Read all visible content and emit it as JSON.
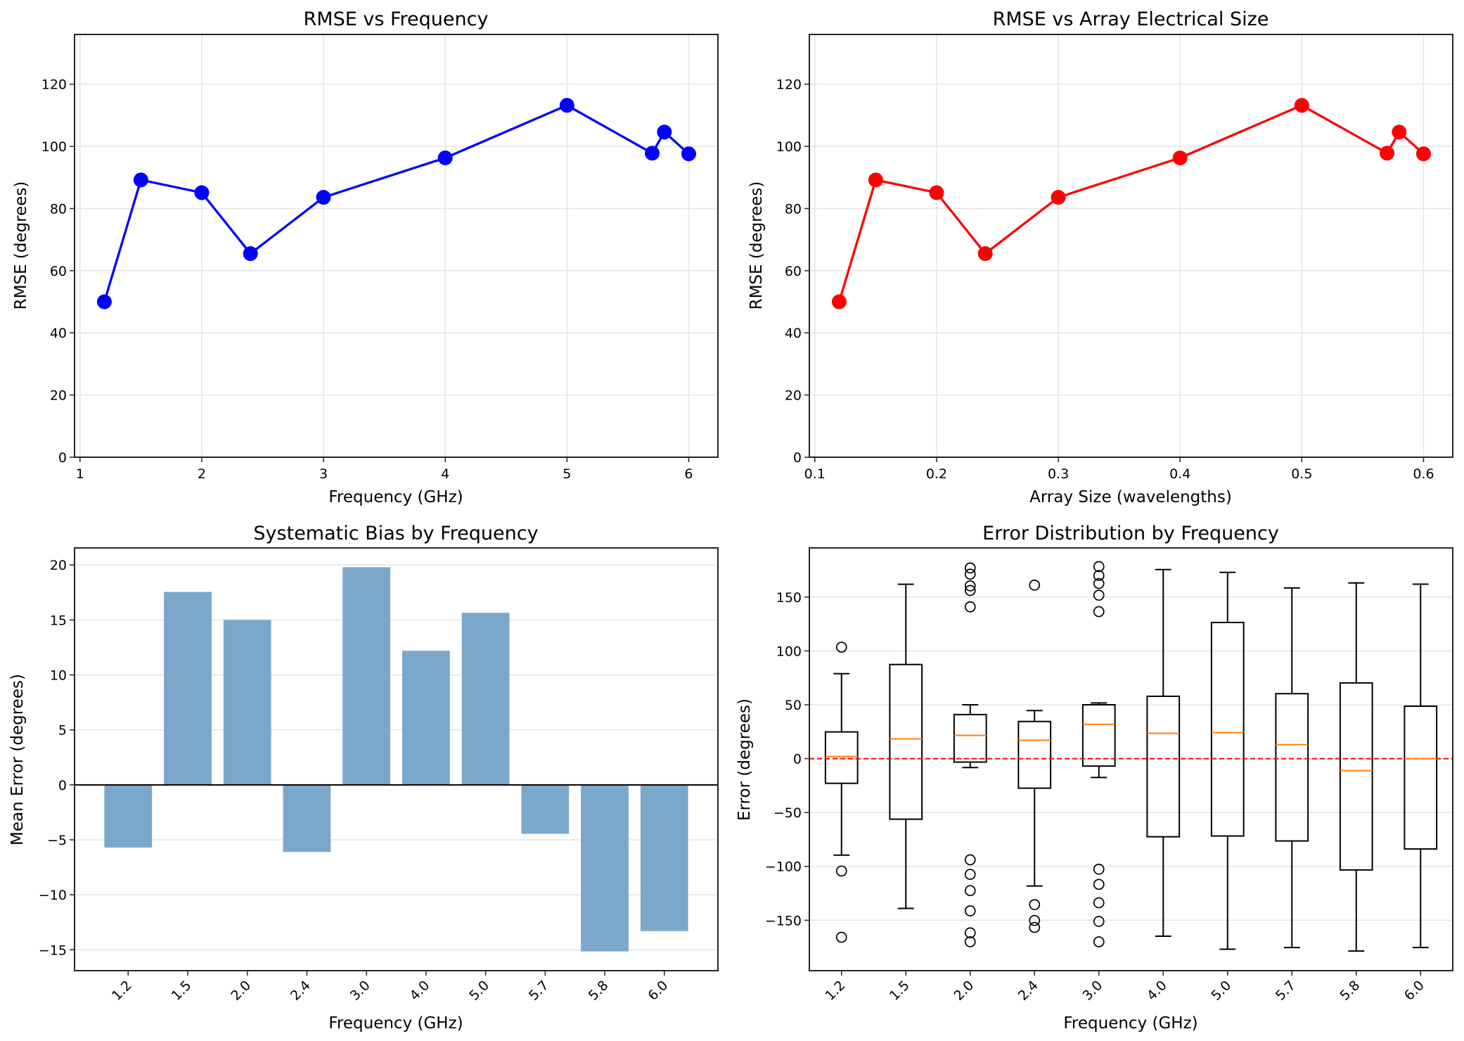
{
  "chart_data": [
    {
      "type": "line",
      "title": "RMSE vs Frequency",
      "xlabel": "Frequency (GHz)",
      "ylabel": "RMSE (degrees)",
      "x": [
        1.2,
        1.5,
        2.0,
        2.4,
        3.0,
        4.0,
        5.0,
        5.7,
        5.8,
        6.0
      ],
      "series": [
        {
          "name": "RMSE",
          "values": [
            50.0,
            89.2,
            85.1,
            65.5,
            83.6,
            96.3,
            113.2,
            97.8,
            104.6,
            97.6
          ],
          "color": "#0000ff"
        }
      ],
      "xlim": [
        0.955,
        6.24
      ],
      "ylim": [
        0,
        136
      ],
      "xticks": [
        1,
        2,
        3,
        4,
        5,
        6
      ],
      "xtick_labels": [
        "1",
        "2",
        "3",
        "4",
        "5",
        "6"
      ],
      "yticks": [
        0,
        20,
        40,
        60,
        80,
        100,
        120
      ],
      "ytick_labels": [
        "0",
        "20",
        "40",
        "60",
        "80",
        "100",
        "120"
      ],
      "grid": true,
      "marker": "circle"
    },
    {
      "type": "line",
      "title": "RMSE vs Array Electrical Size",
      "xlabel": "Array Size (wavelengths)",
      "ylabel": "RMSE (degrees)",
      "x": [
        0.12,
        0.15,
        0.2,
        0.24,
        0.3,
        0.4,
        0.5,
        0.57,
        0.58,
        0.6
      ],
      "series": [
        {
          "name": "RMSE",
          "values": [
            50.0,
            89.2,
            85.1,
            65.5,
            83.6,
            96.3,
            113.2,
            97.8,
            104.6,
            97.6
          ],
          "color": "#ff0000"
        }
      ],
      "xlim": [
        0.0955,
        0.624
      ],
      "ylim": [
        0,
        136
      ],
      "xticks": [
        0.1,
        0.2,
        0.3,
        0.4,
        0.5,
        0.6
      ],
      "xtick_labels": [
        "0.1",
        "0.2",
        "0.3",
        "0.4",
        "0.5",
        "0.6"
      ],
      "yticks": [
        0,
        20,
        40,
        60,
        80,
        100,
        120
      ],
      "ytick_labels": [
        "0",
        "20",
        "40",
        "60",
        "80",
        "100",
        "120"
      ],
      "grid": true,
      "marker": "circle"
    },
    {
      "type": "bar",
      "title": "Systematic Bias by Frequency",
      "xlabel": "Frequency (GHz)",
      "ylabel": "Mean Error (degrees)",
      "categories": [
        "1.2",
        "1.5",
        "2.0",
        "2.4",
        "3.0",
        "4.0",
        "5.0",
        "5.7",
        "5.8",
        "6.0"
      ],
      "values": [
        -5.7,
        17.55,
        15.0,
        -6.1,
        19.8,
        12.2,
        15.65,
        -4.45,
        -15.15,
        -13.3
      ],
      "color": "#7ba7cb",
      "ylim": [
        -16.9,
        21.55
      ],
      "yticks": [
        -15,
        -10,
        -5,
        0,
        5,
        10,
        15,
        20
      ],
      "ytick_labels": [
        "−15",
        "−10",
        "−5",
        "0",
        "5",
        "10",
        "15",
        "20"
      ],
      "zero_line": true,
      "grid": "y"
    },
    {
      "type": "box",
      "title": "Error Distribution by Frequency",
      "xlabel": "Frequency (GHz)",
      "ylabel": "Error (degrees)",
      "categories": [
        "1.2",
        "1.5",
        "2.0",
        "2.4",
        "3.0",
        "4.0",
        "5.0",
        "5.7",
        "5.8",
        "6.0"
      ],
      "boxes": [
        {
          "whislo": -89.6,
          "q1": -22.9,
          "med": 2.0,
          "q3": 24.8,
          "whishi": 78.9,
          "fliers": [
            103.5,
            -104.3,
            -165.8
          ]
        },
        {
          "whislo": -139.0,
          "q1": -56.2,
          "med": 18.3,
          "q3": 87.4,
          "whishi": 161.9,
          "fliers": []
        },
        {
          "whislo": -8.3,
          "q1": -3.2,
          "med": 21.6,
          "q3": 40.9,
          "whishi": 50.0,
          "fliers": [
            177.0,
            171.3,
            160.4,
            156.1,
            140.9,
            -93.9,
            -107.4,
            -122.5,
            -141.3,
            -161.7,
            -170.0
          ]
        },
        {
          "whislo": -118.2,
          "q1": -27.4,
          "med": 17.0,
          "q3": 34.5,
          "whishi": 44.6,
          "fliers": [
            161.1,
            -135.5,
            -150.2,
            -156.7
          ]
        },
        {
          "whislo": -17.5,
          "q1": -6.9,
          "med": 31.9,
          "q3": 50.0,
          "whishi": 51.7,
          "fliers": [
            178.3,
            170.0,
            162.6,
            151.7,
            136.5,
            -102.6,
            -116.7,
            -133.8,
            -151.1,
            -170.0
          ]
        },
        {
          "whislo": -164.8,
          "q1": -72.5,
          "med": 23.5,
          "q3": 57.9,
          "whishi": 175.5,
          "fliers": []
        },
        {
          "whislo": -176.9,
          "q1": -71.8,
          "med": 24.2,
          "q3": 126.4,
          "whishi": 172.9,
          "fliers": []
        },
        {
          "whislo": -175.3,
          "q1": -76.4,
          "med": 13.0,
          "q3": 60.3,
          "whishi": 158.5,
          "fliers": []
        },
        {
          "whislo": -178.6,
          "q1": -103.3,
          "med": -11.1,
          "q3": 70.3,
          "whishi": 163.1,
          "fliers": []
        },
        {
          "whislo": -175.3,
          "q1": -83.8,
          "med": 0.0,
          "q3": 48.7,
          "whishi": 162.0,
          "fliers": []
        }
      ],
      "median_color": "#ff7f0e",
      "reference_line": {
        "y": 0,
        "color": "#ff0000",
        "style": "dashed"
      },
      "ylim": [
        -196.8,
        195.6
      ],
      "yticks": [
        -150,
        -100,
        -50,
        0,
        50,
        100,
        150
      ],
      "ytick_labels": [
        "−150",
        "−100",
        "−50",
        "0",
        "50",
        "100",
        "150"
      ],
      "grid": "y"
    }
  ]
}
